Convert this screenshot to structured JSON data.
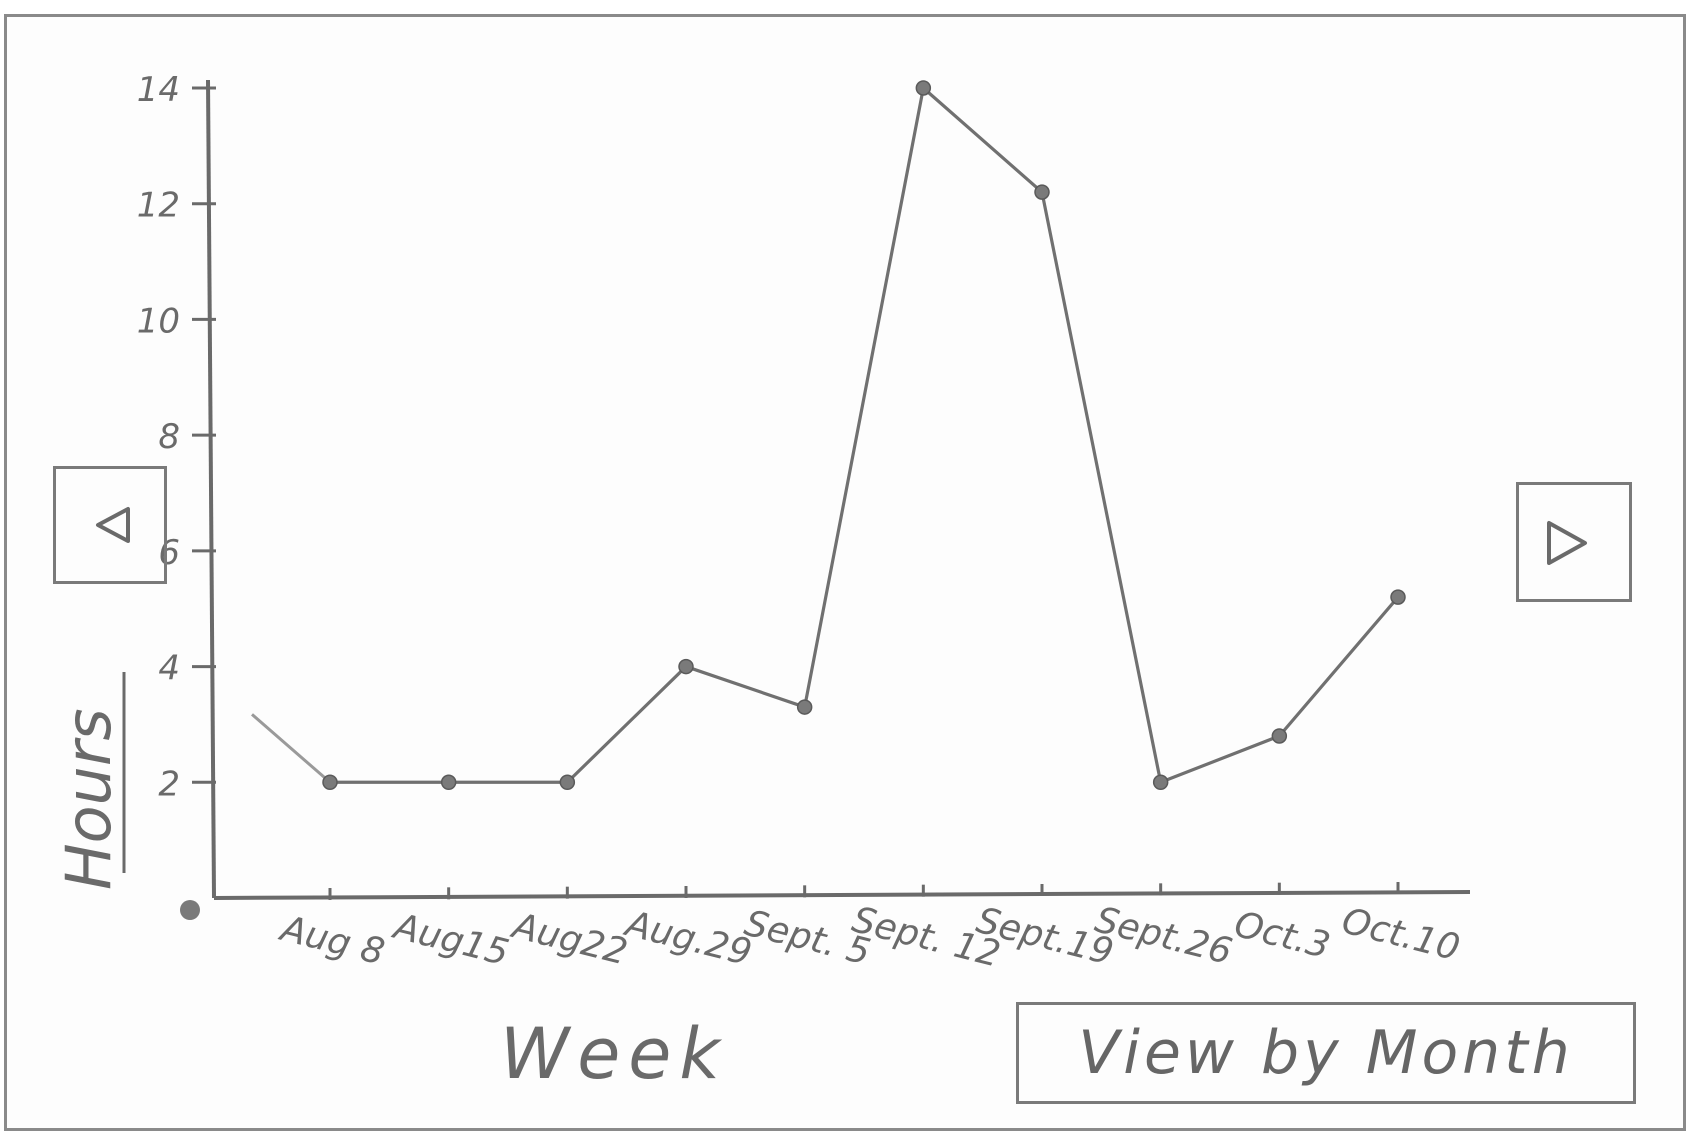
{
  "chart_data": {
    "type": "line",
    "xlabel": "Week",
    "ylabel": "Hours",
    "categories": [
      "Aug 8",
      "Aug 15",
      "Aug 22",
      "Aug 29",
      "Sept. 5",
      "Sept. 12",
      "Sept. 19",
      "Sept. 26",
      "Oct. 3",
      "Oct. 10"
    ],
    "category_labels": [
      "Aug 8",
      "Aug15",
      "Aug22",
      "Aug.29",
      "Sept. 5",
      "Sept. 12",
      "Sept.19",
      "Sept.26",
      "Oct.3",
      "Oct.10"
    ],
    "values": [
      2,
      2,
      2,
      4,
      3.3,
      14,
      12.2,
      2,
      2.8,
      5.2
    ],
    "lead_in_value": 3,
    "yticks": [
      2,
      4,
      6,
      8,
      10,
      12,
      14
    ],
    "ytick_labels": [
      "2",
      "4",
      "6",
      "8",
      "10",
      "12",
      "14"
    ],
    "ylim": [
      0,
      14
    ],
    "grid": false,
    "origin_marker": "filled-dot"
  },
  "controls": {
    "prev_icon": "triangle-left-icon",
    "next_icon": "triangle-right-icon",
    "view_by_month_label": "View by Month"
  },
  "colors": {
    "ink": "#6a6a6a",
    "line": "#707070",
    "frame": "#8a8a8a"
  }
}
